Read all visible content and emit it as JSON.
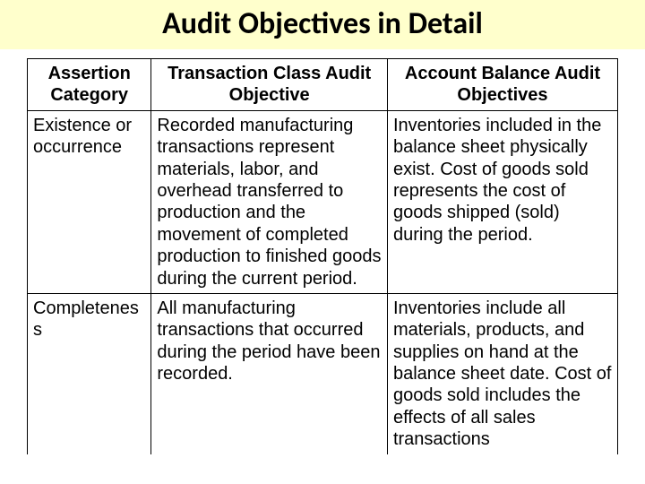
{
  "title": "Audit Objectives in Detail",
  "table": {
    "columns": [
      "Assertion Category",
      "Transaction Class Audit Objective",
      "Account Balance Audit Objectives"
    ],
    "column_widths_pct": [
      21,
      40,
      39
    ],
    "header_align": "center",
    "cell_align": "left",
    "font_size_pt": 20,
    "rows": [
      [
        "Existence or occurrence",
        "Recorded manufacturing transactions represent materials, labor, and overhead transferred to production and the movement of completed production to finished goods during the current period.",
        "Inventories included in the balance sheet physically exist.\nCost of goods sold represents the cost of goods shipped (sold) during the period."
      ],
      [
        "Completeness",
        "All manufacturing transactions that occurred during the period have been recorded.",
        "Inventories include all materials, products, and supplies on hand at the balance sheet date.\nCost of goods sold includes the effects of all sales transactions"
      ]
    ]
  },
  "colors": {
    "title_bg": "#ffffcc",
    "text": "#000000",
    "border": "#000000",
    "page_bg": "#ffffff"
  }
}
